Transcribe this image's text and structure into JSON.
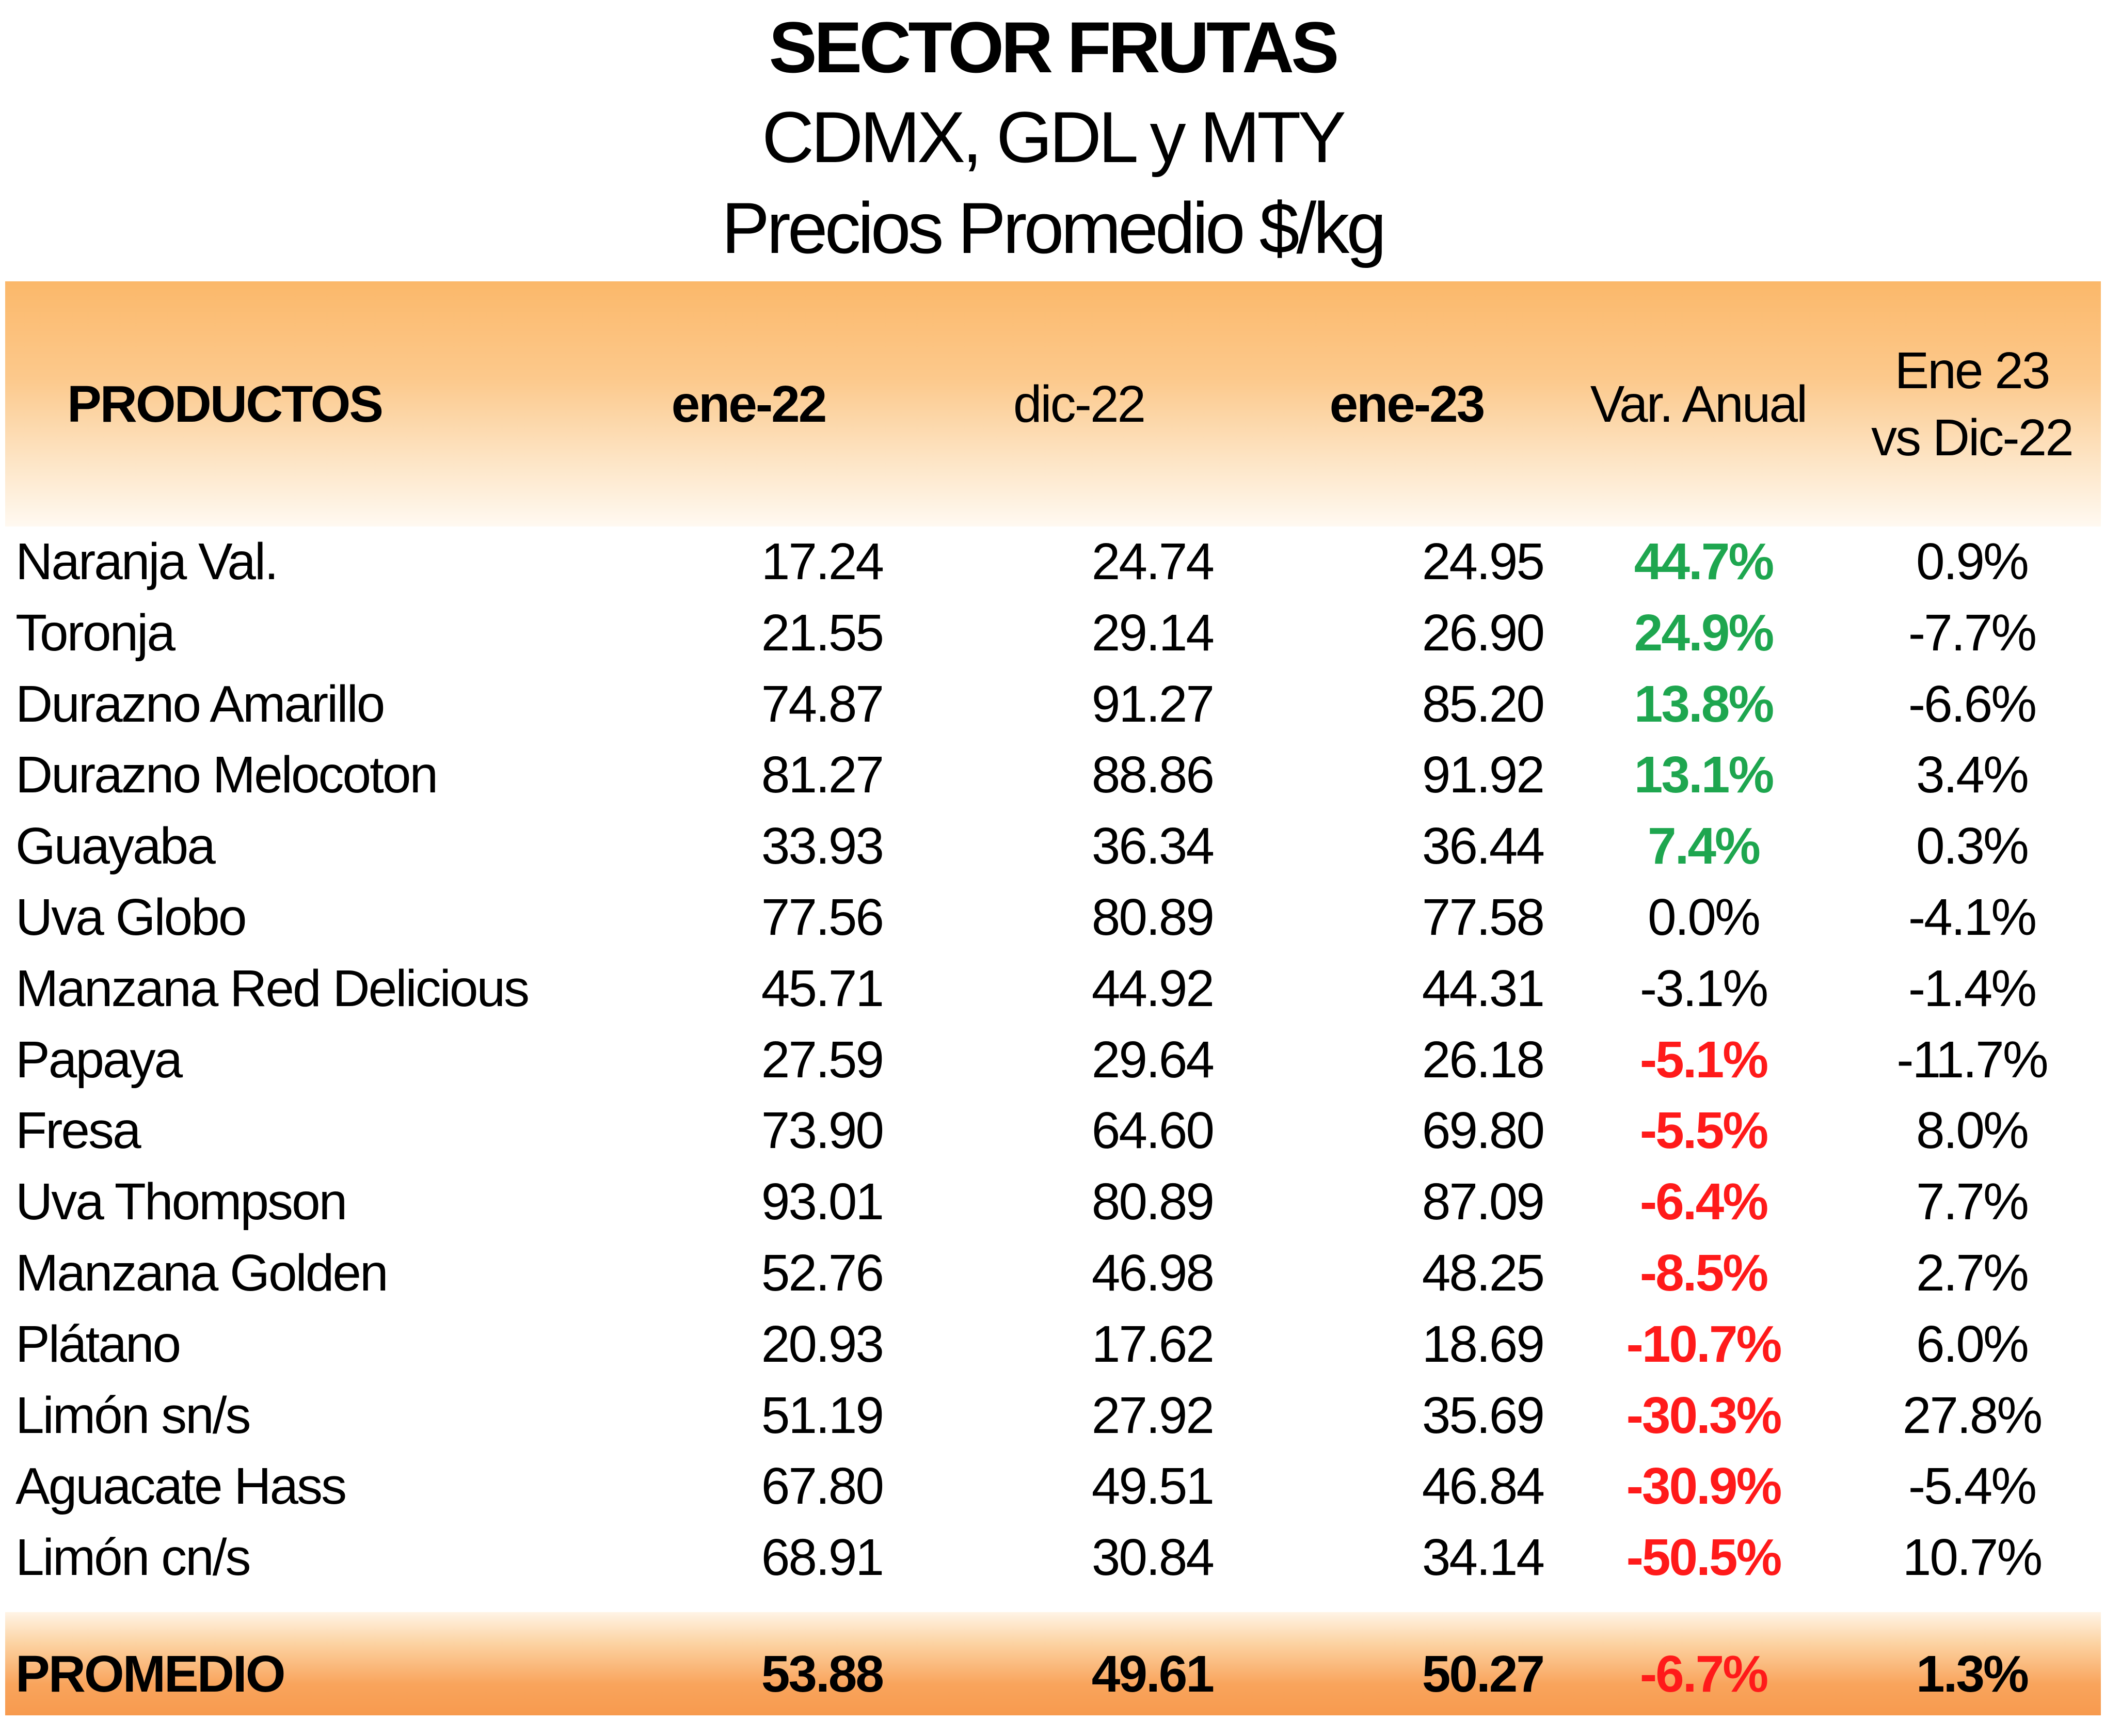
{
  "title": {
    "line1": "SECTOR FRUTAS",
    "line2": "CDMX, GDL y MTY",
    "line3": "Precios Promedio $/kg"
  },
  "headers": {
    "productos": "PRODUCTOS",
    "ene22": "ene-22",
    "dic22": "dic-22",
    "ene23": "ene-23",
    "var_anual": "Var. Anual",
    "ene_vs_dic_line1": "Ene 23",
    "ene_vs_dic_line2": "vs Dic-22"
  },
  "colors": {
    "positive": "#1ea64f",
    "negative": "#ff1a1a",
    "header_orange": "#fbb86a",
    "footer_orange": "#f79a4e"
  },
  "rows": [
    {
      "name": "Naranja Val.",
      "ene22": "17.24",
      "dic22": "24.74",
      "ene23": "24.95",
      "var": "44.7%",
      "var_status": "positive",
      "vs": "0.9%"
    },
    {
      "name": "Toronja",
      "ene22": "21.55",
      "dic22": "29.14",
      "ene23": "26.90",
      "var": "24.9%",
      "var_status": "positive",
      "vs": "-7.7%"
    },
    {
      "name": "Durazno Amarillo",
      "ene22": "74.87",
      "dic22": "91.27",
      "ene23": "85.20",
      "var": "13.8%",
      "var_status": "positive",
      "vs": "-6.6%"
    },
    {
      "name": "Durazno Melocoton",
      "ene22": "81.27",
      "dic22": "88.86",
      "ene23": "91.92",
      "var": "13.1%",
      "var_status": "positive",
      "vs": "3.4%"
    },
    {
      "name": "Guayaba",
      "ene22": "33.93",
      "dic22": "36.34",
      "ene23": "36.44",
      "var": "7.4%",
      "var_status": "positive",
      "vs": "0.3%"
    },
    {
      "name": "Uva Globo",
      "ene22": "77.56",
      "dic22": "80.89",
      "ene23": "77.58",
      "var": "0.0%",
      "var_status": "neutral",
      "vs": "-4.1%"
    },
    {
      "name": "Manzana Red Delicious",
      "ene22": "45.71",
      "dic22": "44.92",
      "ene23": "44.31",
      "var": "-3.1%",
      "var_status": "neutral",
      "vs": "-1.4%"
    },
    {
      "name": "Papaya",
      "ene22": "27.59",
      "dic22": "29.64",
      "ene23": "26.18",
      "var": "-5.1%",
      "var_status": "negative",
      "vs": "-11.7%"
    },
    {
      "name": "Fresa",
      "ene22": "73.90",
      "dic22": "64.60",
      "ene23": "69.80",
      "var": "-5.5%",
      "var_status": "negative",
      "vs": "8.0%"
    },
    {
      "name": "Uva Thompson",
      "ene22": "93.01",
      "dic22": "80.89",
      "ene23": "87.09",
      "var": "-6.4%",
      "var_status": "negative",
      "vs": "7.7%"
    },
    {
      "name": "Manzana Golden",
      "ene22": "52.76",
      "dic22": "46.98",
      "ene23": "48.25",
      "var": "-8.5%",
      "var_status": "negative",
      "vs": "2.7%"
    },
    {
      "name": "Plátano",
      "ene22": "20.93",
      "dic22": "17.62",
      "ene23": "18.69",
      "var": "-10.7%",
      "var_status": "negative",
      "vs": "6.0%"
    },
    {
      "name": "Limón sn/s",
      "ene22": "51.19",
      "dic22": "27.92",
      "ene23": "35.69",
      "var": "-30.3%",
      "var_status": "negative",
      "vs": "27.8%"
    },
    {
      "name": "Aguacate Hass",
      "ene22": "67.80",
      "dic22": "49.51",
      "ene23": "46.84",
      "var": "-30.9%",
      "var_status": "negative",
      "vs": "-5.4%"
    },
    {
      "name": "Limón cn/s",
      "ene22": "68.91",
      "dic22": "30.84",
      "ene23": "34.14",
      "var": "-50.5%",
      "var_status": "negative",
      "vs": "10.7%"
    }
  ],
  "footer": {
    "name": "PROMEDIO",
    "ene22": "53.88",
    "dic22": "49.61",
    "ene23": "50.27",
    "var": "-6.7%",
    "var_status": "negative",
    "vs": "1.3%"
  }
}
